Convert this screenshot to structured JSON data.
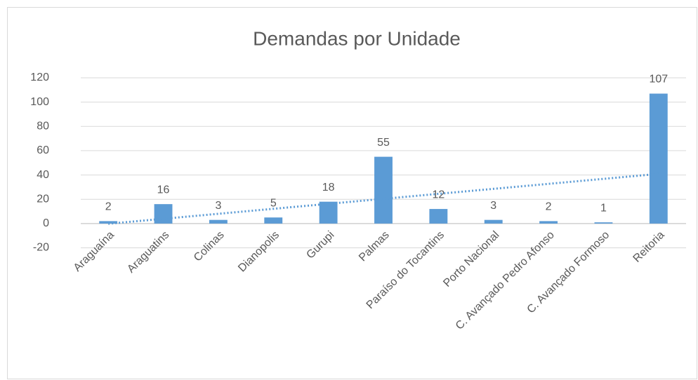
{
  "chart_data": {
    "type": "bar",
    "title": "Demandas por Unidade",
    "categories": [
      "Araguaína",
      "Araguatins",
      "Colinas",
      "Dianopolis",
      "Gurupi",
      "Palmas",
      "Paraíso do Tocantins",
      "Porto Nacional",
      "C. Avançado Pedro Afonso",
      "C. Avançado Formoso",
      "Reitoria"
    ],
    "values": [
      2,
      16,
      3,
      5,
      18,
      55,
      12,
      3,
      2,
      1,
      107
    ],
    "color": "#5b9bd5",
    "ylim": [
      -20,
      120
    ],
    "yticks": [
      -20,
      0,
      20,
      40,
      60,
      80,
      100,
      120
    ],
    "grid": true,
    "trendline": "linear"
  }
}
